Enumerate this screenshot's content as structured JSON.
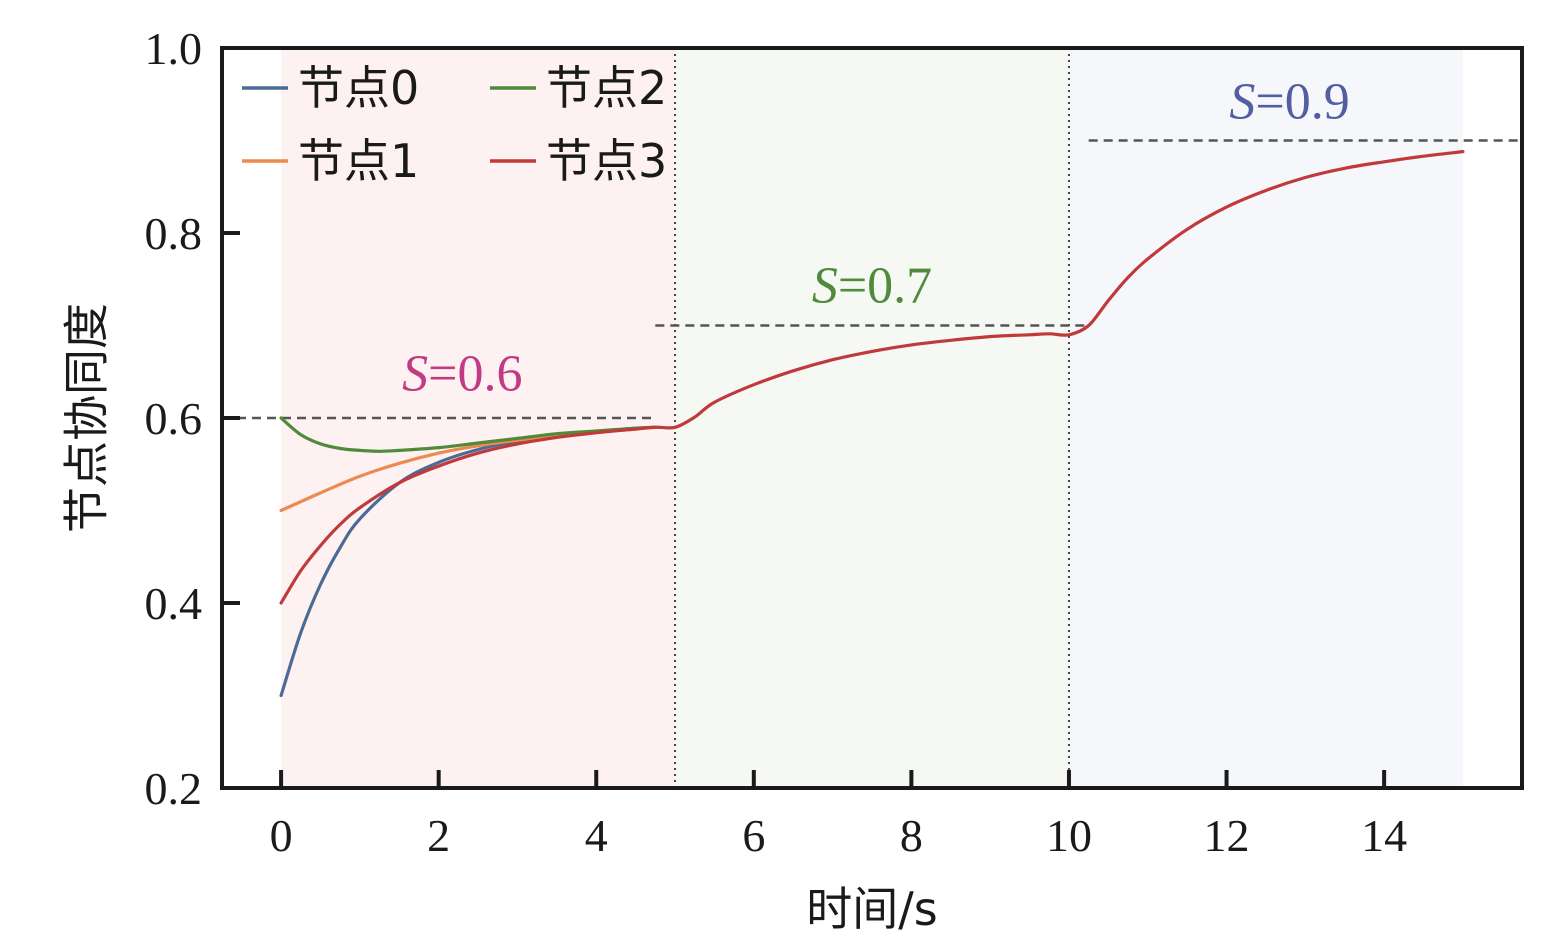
{
  "colors": {
    "node0": "#4a6b96",
    "node1": "#ec8a4f",
    "node2": "#4f8b3a",
    "node3": "#c0393b",
    "phase1_bg": "#fdf2f1",
    "phase2_bg": "#f6f8f4",
    "phase3_bg": "#f6f7fb",
    "ann1": "#c13a85",
    "ann2": "#4f8b3a",
    "ann3": "#525ea0",
    "ref_line": "#555555",
    "axis": "#1a1a1a"
  },
  "chart_data": {
    "type": "line",
    "xlabel": "时间/s",
    "ylabel": "节点协同度",
    "xlim": [
      -0.75,
      15.75
    ],
    "ylim": [
      0.2,
      1.0
    ],
    "x_ticks": [
      0,
      2,
      4,
      6,
      8,
      10,
      12,
      14
    ],
    "y_ticks": [
      0.2,
      0.4,
      0.6,
      0.8,
      1.0
    ],
    "x_tick_labels": [
      "0",
      "2",
      "4",
      "6",
      "8",
      "10",
      "12",
      "14"
    ],
    "y_tick_labels": [
      "0.2",
      "0.4",
      "0.6",
      "0.8",
      "1.0"
    ],
    "legend_position": "top-left",
    "phase_boundaries": [
      5,
      10
    ],
    "shaded_regions": [
      {
        "x": [
          0,
          5
        ],
        "color_key": "phase1_bg"
      },
      {
        "x": [
          5,
          10
        ],
        "color_key": "phase2_bg"
      },
      {
        "x": [
          10,
          15
        ],
        "color_key": "phase3_bg"
      }
    ],
    "reference_lines": [
      {
        "y": 0.6,
        "x": [
          -0.75,
          4.75
        ]
      },
      {
        "y": 0.7,
        "x": [
          4.75,
          10.25
        ]
      },
      {
        "y": 0.9,
        "x": [
          10.25,
          15.75
        ]
      }
    ],
    "annotations": [
      {
        "italic": "S",
        "text": "=0.6",
        "x": 2.3,
        "y": 0.63,
        "color_key": "ann1"
      },
      {
        "italic": "S",
        "text": "=0.7",
        "x": 7.5,
        "y": 0.725,
        "color_key": "ann2"
      },
      {
        "italic": "S",
        "text": "=0.9",
        "x": 12.8,
        "y": 0.924,
        "color_key": "ann3"
      }
    ],
    "series": [
      {
        "name": "节点0",
        "color_key": "node0",
        "x": [
          0,
          0.25,
          0.5,
          0.75,
          1,
          1.5,
          2,
          2.5,
          3,
          3.5,
          4,
          4.5,
          4.75
        ],
        "y": [
          0.3,
          0.368,
          0.42,
          0.46,
          0.491,
          0.53,
          0.552,
          0.566,
          0.575,
          0.581,
          0.585,
          0.589,
          0.59
        ]
      },
      {
        "name": "节点1",
        "color_key": "node1",
        "x": [
          0,
          0.5,
          1,
          1.5,
          2,
          2.5,
          3,
          3.5,
          4,
          4.5,
          4.75
        ],
        "y": [
          0.5,
          0.519,
          0.537,
          0.551,
          0.562,
          0.57,
          0.576,
          0.581,
          0.585,
          0.589,
          0.59
        ]
      },
      {
        "name": "节点2",
        "color_key": "node2",
        "x": [
          0,
          0.25,
          0.5,
          0.75,
          1,
          1.25,
          1.5,
          2,
          2.5,
          3,
          3.5,
          4,
          4.5,
          4.75
        ],
        "y": [
          0.6,
          0.582,
          0.572,
          0.567,
          0.565,
          0.564,
          0.565,
          0.568,
          0.573,
          0.578,
          0.583,
          0.586,
          0.589,
          0.59
        ]
      },
      {
        "name": "节点3",
        "color_key": "node3",
        "x": [
          0,
          0.25,
          0.5,
          0.75,
          1,
          1.5,
          2,
          2.5,
          3,
          3.5,
          4,
          4.5,
          4.75,
          5,
          5.25,
          5.5,
          6,
          6.5,
          7,
          7.5,
          8,
          8.5,
          9,
          9.5,
          9.75,
          10,
          10.25,
          10.5,
          10.75,
          11,
          11.5,
          12,
          12.5,
          13,
          13.5,
          14,
          14.5,
          15
        ],
        "y": [
          0.4,
          0.435,
          0.462,
          0.485,
          0.503,
          0.53,
          0.548,
          0.562,
          0.572,
          0.579,
          0.584,
          0.588,
          0.59,
          0.59,
          0.601,
          0.617,
          0.636,
          0.651,
          0.663,
          0.672,
          0.679,
          0.684,
          0.688,
          0.69,
          0.691,
          0.69,
          0.7,
          0.727,
          0.752,
          0.772,
          0.804,
          0.828,
          0.846,
          0.86,
          0.87,
          0.877,
          0.883,
          0.888
        ]
      }
    ]
  }
}
